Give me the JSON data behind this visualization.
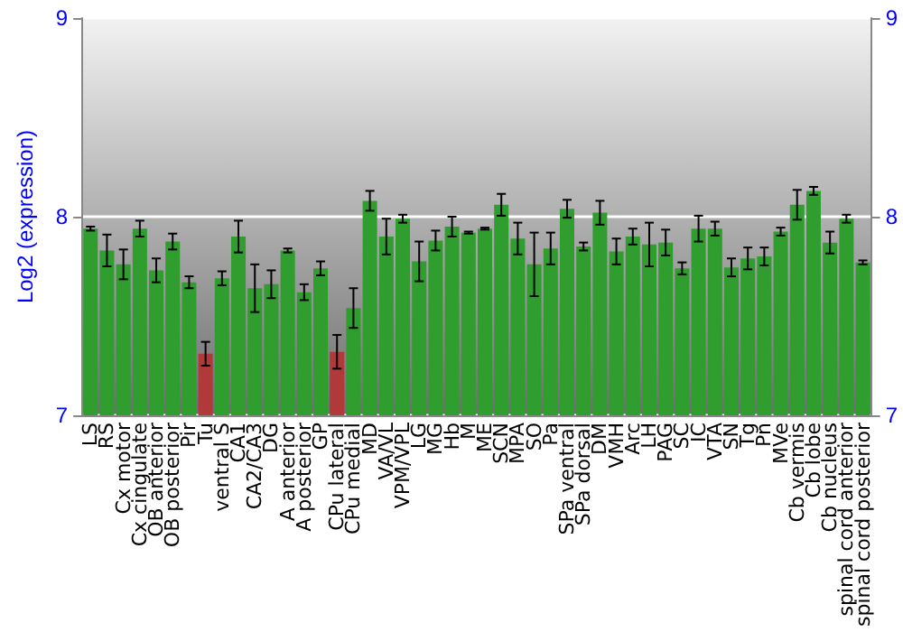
{
  "chart_data": {
    "type": "bar",
    "ylabel": "Log2 (expression)",
    "categories": [
      "LS",
      "RS",
      "Cx motor",
      "Cx cingulate",
      "OB anterior",
      "OB posterior",
      "Pir",
      "Tu",
      "ventral S",
      "CA1",
      "CA2/CA3",
      "DG",
      "A anterior",
      "A posterior",
      "GP",
      "CPu lateral",
      "CPu medial",
      "MD",
      "VA/VL",
      "VPM/VPL",
      "LG",
      "MG",
      "Hb",
      "M",
      "ME",
      "SCN",
      "MPA",
      "SO",
      "Pa",
      "SPa ventral",
      "SPa dorsal",
      "DM",
      "VMH",
      "Arc",
      "LH",
      "PAG",
      "SC",
      "IC",
      "VTA",
      "SN",
      "Tg",
      "Pn",
      "MVe",
      "Cb vermis",
      "Cb lobe",
      "Cb nucleus",
      "spinal cord anterior",
      "spinal cord posterior"
    ],
    "values": [
      7.94,
      7.83,
      7.76,
      7.94,
      7.73,
      7.875,
      7.67,
      7.31,
      7.69,
      7.9,
      7.64,
      7.66,
      7.83,
      7.62,
      7.74,
      7.32,
      7.54,
      8.08,
      7.9,
      7.99,
      7.775,
      7.88,
      7.95,
      7.92,
      7.94,
      8.06,
      7.89,
      7.76,
      7.84,
      8.04,
      7.85,
      8.02,
      7.825,
      7.9,
      7.86,
      7.87,
      7.74,
      7.94,
      7.94,
      7.745,
      7.79,
      7.8,
      7.925,
      8.06,
      8.13,
      7.87,
      7.99,
      7.77
    ],
    "errors": [
      0.01,
      0.08,
      0.075,
      0.04,
      0.06,
      0.04,
      0.03,
      0.06,
      0.035,
      0.08,
      0.12,
      0.07,
      0.01,
      0.04,
      0.035,
      0.085,
      0.1,
      0.05,
      0.09,
      0.02,
      0.1,
      0.05,
      0.05,
      0.005,
      0.005,
      0.055,
      0.08,
      0.16,
      0.08,
      0.045,
      0.02,
      0.06,
      0.065,
      0.04,
      0.11,
      0.065,
      0.03,
      0.065,
      0.035,
      0.045,
      0.055,
      0.045,
      0.02,
      0.075,
      0.02,
      0.055,
      0.02,
      0.01
    ],
    "colors": [
      "#2f9e2f",
      "#2f9e2f",
      "#2f9e2f",
      "#2f9e2f",
      "#2f9e2f",
      "#2f9e2f",
      "#2f9e2f",
      "#b03a3a",
      "#2f9e2f",
      "#2f9e2f",
      "#2f9e2f",
      "#2f9e2f",
      "#2f9e2f",
      "#2f9e2f",
      "#2f9e2f",
      "#b03a3a",
      "#2f9e2f",
      "#2f9e2f",
      "#2f9e2f",
      "#2f9e2f",
      "#2f9e2f",
      "#2f9e2f",
      "#2f9e2f",
      "#2f9e2f",
      "#2f9e2f",
      "#2f9e2f",
      "#2f9e2f",
      "#2f9e2f",
      "#2f9e2f",
      "#2f9e2f",
      "#2f9e2f",
      "#2f9e2f",
      "#2f9e2f",
      "#2f9e2f",
      "#2f9e2f",
      "#2f9e2f",
      "#2f9e2f",
      "#2f9e2f",
      "#2f9e2f",
      "#2f9e2f",
      "#2f9e2f",
      "#2f9e2f",
      "#2f9e2f",
      "#2f9e2f",
      "#2f9e2f",
      "#2f9e2f",
      "#2f9e2f",
      "#2f9e2f"
    ],
    "ylim": [
      7,
      9
    ],
    "yticks": [
      7,
      8,
      9
    ],
    "y2lim": [
      7,
      9
    ],
    "y2ticks": [
      7,
      8,
      9
    ],
    "grid": "y"
  }
}
